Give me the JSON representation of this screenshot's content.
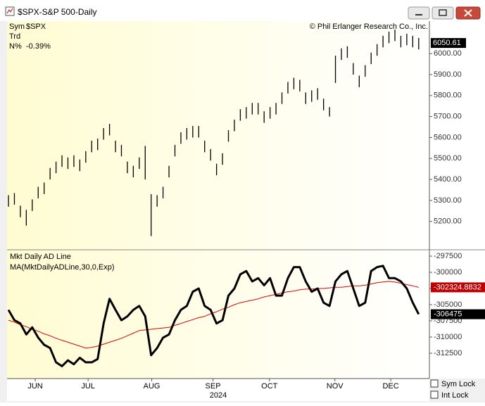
{
  "window": {
    "title": "$SPX-S&P 500-Daily",
    "controls": [
      "Sym Lock",
      "Int Lock"
    ]
  },
  "chart_data": [
    {
      "type": "ohlc",
      "copyright": "© Phil Erlanger Research Co., Inc.",
      "info": [
        {
          "label": "Sym",
          "value": "$SPX"
        },
        {
          "label": "Trd"
        },
        {
          "label": "N%",
          "value": "-0.39%"
        }
      ],
      "last_price": 6050.61,
      "xlim": [
        -0.24,
        70.8
      ],
      "ylim": [
        5068,
        6155
      ],
      "yticks": [
        {
          "value": 5200,
          "label": "5200.00"
        },
        {
          "value": 5300,
          "label": "5300.00"
        },
        {
          "value": 5400,
          "label": "5400.00"
        },
        {
          "value": 5500,
          "label": "5500.00"
        },
        {
          "value": 5600,
          "label": "5600.00"
        },
        {
          "value": 5700,
          "label": "5700.00"
        },
        {
          "value": 5800,
          "label": "5800.00"
        },
        {
          "value": 5900,
          "label": "5900.00"
        },
        {
          "value": 6000,
          "label": "6000.00"
        }
      ],
      "color": "#000000",
      "high": [
        5325,
        5335,
        5275,
        5255,
        5305,
        5365,
        5385,
        5455,
        5485,
        5515,
        5505,
        5515,
        5495,
        5535,
        5585,
        5595,
        5645,
        5665,
        5585,
        5565,
        5485,
        5465,
        5505,
        5560,
        5330,
        5325,
        5365,
        5465,
        5565,
        5625,
        5645,
        5655,
        5655,
        5585,
        5545,
        5475,
        5525,
        5635,
        5685,
        5735,
        5745,
        5765,
        5765,
        5725,
        5745,
        5765,
        5815,
        5865,
        5885,
        5875,
        5815,
        5825,
        5835,
        5785,
        5745,
        5990,
        6025,
        6035,
        5955,
        5895,
        5945,
        6005,
        6045,
        6085,
        6105,
        6115,
        6085,
        6095,
        6085,
        6075
      ],
      "low": [
        5270,
        5280,
        5220,
        5180,
        5250,
        5310,
        5330,
        5400,
        5430,
        5460,
        5450,
        5460,
        5440,
        5480,
        5530,
        5540,
        5590,
        5610,
        5530,
        5510,
        5430,
        5410,
        5450,
        5400,
        5130,
        5270,
        5310,
        5410,
        5510,
        5570,
        5590,
        5600,
        5600,
        5530,
        5490,
        5420,
        5470,
        5580,
        5630,
        5680,
        5690,
        5710,
        5710,
        5670,
        5690,
        5710,
        5760,
        5810,
        5830,
        5820,
        5760,
        5770,
        5780,
        5730,
        5700,
        5860,
        5970,
        5980,
        5900,
        5840,
        5890,
        5950,
        5990,
        6030,
        6050,
        6060,
        6030,
        6040,
        6030,
        6020
      ]
    },
    {
      "type": "line",
      "xlim": [
        -0.24,
        70.8
      ],
      "ylim": [
        -316413,
        -296630
      ],
      "yticks": [
        -297500,
        -300000,
        -302500,
        -305000,
        -307500,
        -310000,
        -312500
      ],
      "xticks": [
        {
          "value": 4.5,
          "label": "JUN"
        },
        {
          "value": 13.4,
          "label": "JUL"
        },
        {
          "value": 24.1,
          "label": "AUG"
        },
        {
          "value": 34.4,
          "label": "SEP"
        },
        {
          "value": 43.9,
          "label": "OCT"
        },
        {
          "value": 54.9,
          "label": "NOV"
        },
        {
          "value": 64.3,
          "label": "DEC"
        }
      ],
      "year": "2024",
      "series": [
        {
          "name": "Mkt Daily AD Line",
          "color": "#000000",
          "values": [
            -305800,
            -307400,
            -307900,
            -309600,
            -308500,
            -310100,
            -311200,
            -311700,
            -313900,
            -314500,
            -313600,
            -314200,
            -313200,
            -313900,
            -313900,
            -313400,
            -307900,
            -304100,
            -305800,
            -307400,
            -306800,
            -305800,
            -305200,
            -306800,
            -312800,
            -311700,
            -310100,
            -309600,
            -307400,
            -305800,
            -305200,
            -303000,
            -302500,
            -305200,
            -305800,
            -307900,
            -307400,
            -303600,
            -302500,
            -300300,
            -299800,
            -301400,
            -300900,
            -302000,
            -300900,
            -303600,
            -303600,
            -300900,
            -299200,
            -299200,
            -301400,
            -303000,
            -302500,
            -304700,
            -305200,
            -301400,
            -300300,
            -299800,
            -302500,
            -305200,
            -304700,
            -299800,
            -299200,
            -299000,
            -300900,
            -300900,
            -301400,
            -302500,
            -304700,
            -306475
          ]
        },
        {
          "name": "MA(MktDailyADLine,30,0,Exp)",
          "color": "#e00000",
          "values": [
            -307400,
            -307700,
            -308100,
            -308400,
            -308800,
            -309100,
            -309500,
            -309800,
            -310200,
            -310500,
            -310800,
            -311100,
            -311400,
            -311700,
            -311600,
            -311400,
            -311100,
            -310800,
            -310500,
            -310200,
            -309800,
            -309400,
            -309000,
            -308900,
            -308800,
            -308700,
            -308600,
            -308500,
            -308200,
            -307900,
            -307600,
            -307300,
            -307000,
            -306800,
            -306400,
            -306100,
            -305700,
            -305400,
            -305000,
            -304700,
            -304500,
            -304300,
            -304100,
            -303800,
            -303600,
            -303400,
            -303200,
            -303000,
            -302900,
            -302700,
            -302600,
            -302600,
            -302500,
            -302500,
            -302400,
            -302300,
            -302300,
            -302200,
            -302100,
            -302100,
            -302000,
            -301800,
            -301600,
            -301500,
            -301400,
            -301500,
            -301700,
            -301900,
            -302100,
            -302324.8832
          ]
        }
      ]
    }
  ]
}
